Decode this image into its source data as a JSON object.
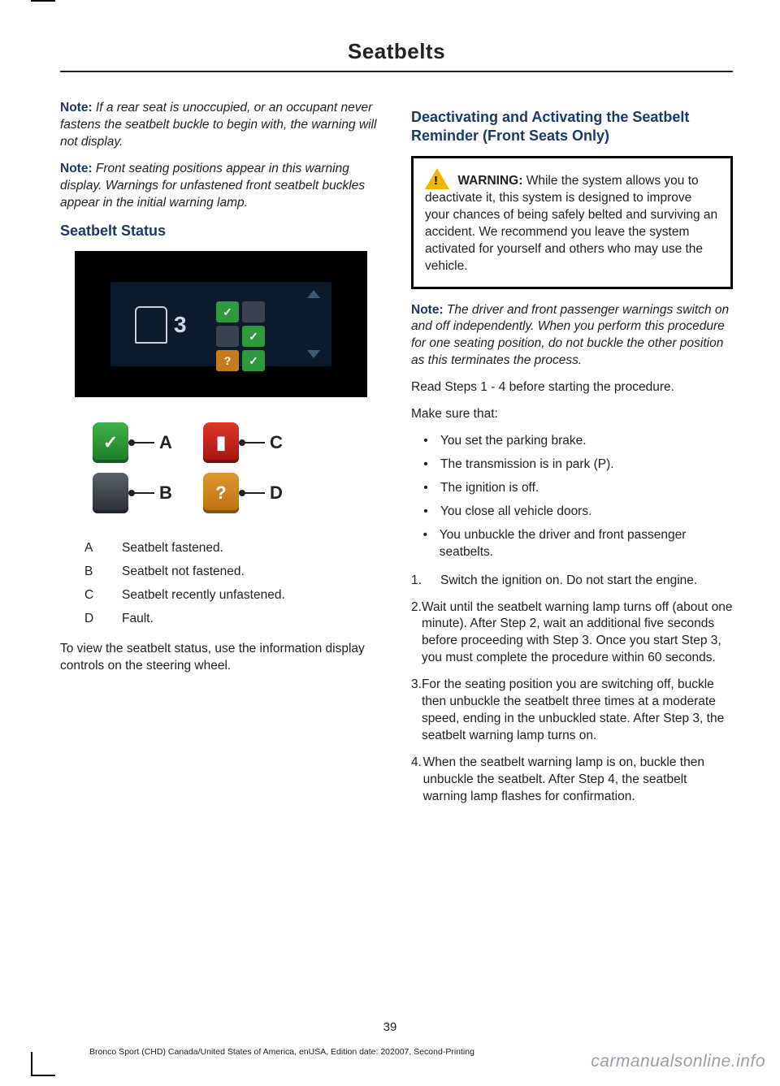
{
  "page": {
    "title": "Seatbelts",
    "number": "39",
    "footline": "Bronco Sport (CHD) Canada/United States of America, enUSA, Edition date: 202007, Second-Printing",
    "watermark": "carmanualsonline.info"
  },
  "left": {
    "note1": {
      "label": "Note:",
      "body": "If a rear seat is unoccupied, or an occupant never fastens the seatbelt buckle to begin with, the warning will not display."
    },
    "note2": {
      "label": "Note:",
      "body": "Front seating positions appear in this warning display. Warnings for unfastened front seatbelt buckles appear in the initial warning lamp."
    },
    "h_status": "Seatbelt Status",
    "dash": {
      "count": "3"
    },
    "diagram": {
      "A": "A",
      "B": "B",
      "C": "C",
      "D": "D",
      "glyph_check": "✓",
      "glyph_seat": "▮",
      "glyph_q": "?"
    },
    "legend": {
      "a": {
        "k": "A",
        "v": "Seatbelt fastened."
      },
      "b": {
        "k": "B",
        "v": "Seatbelt not fastened."
      },
      "c": {
        "k": "C",
        "v": "Seatbelt recently unfastened."
      },
      "d": {
        "k": "D",
        "v": "Fault."
      }
    },
    "tail": "To view the seatbelt status, use the information display controls on the steering wheel."
  },
  "right": {
    "h_deact": "Deactivating and Activating the Seatbelt Reminder (Front Seats Only)",
    "warning": {
      "label": "WARNING:",
      "body": "While the system allows you to deactivate it, this system is designed to improve your chances of being safely belted and surviving an accident. We recommend you leave the system activated for yourself and others who may use the vehicle."
    },
    "note": {
      "label": "Note:",
      "body": "The driver and front passenger warnings switch on and off independently. When you perform this procedure for one seating position, do not buckle the other position as this terminates the process."
    },
    "read_steps": "Read Steps 1 - 4 before starting the procedure.",
    "make_sure": "Make sure that:",
    "bullets": [
      "You set the parking brake.",
      "The transmission is in park (P).",
      "The ignition is off.",
      "You close all vehicle doors.",
      "You unbuckle the driver and front passenger seatbelts."
    ],
    "steps": [
      {
        "n": "1.",
        "t": "Switch the ignition on.  Do not start the engine."
      },
      {
        "n": "2.",
        "t": "Wait until the seatbelt warning lamp turns off (about one minute). After Step 2, wait an additional five seconds before proceeding with Step 3. Once you start Step 3, you must complete the procedure within 60 seconds."
      },
      {
        "n": "3.",
        "t": "For the seating position you are switching off, buckle then unbuckle the seatbelt three times at a moderate speed, ending in the unbuckled state. After Step 3, the seatbelt warning lamp turns on."
      },
      {
        "n": "4.",
        "t": "When the seatbelt warning lamp is on, buckle then unbuckle the seatbelt. After Step 4, the seatbelt warning lamp flashes for confirmation."
      }
    ]
  },
  "colors": {
    "heading": "#1a3a6e",
    "green": "#2e9a3c",
    "gray": "#3a4250",
    "red": "#e0352c",
    "orange": "#e19730",
    "warn_triangle": "#f4b400"
  }
}
